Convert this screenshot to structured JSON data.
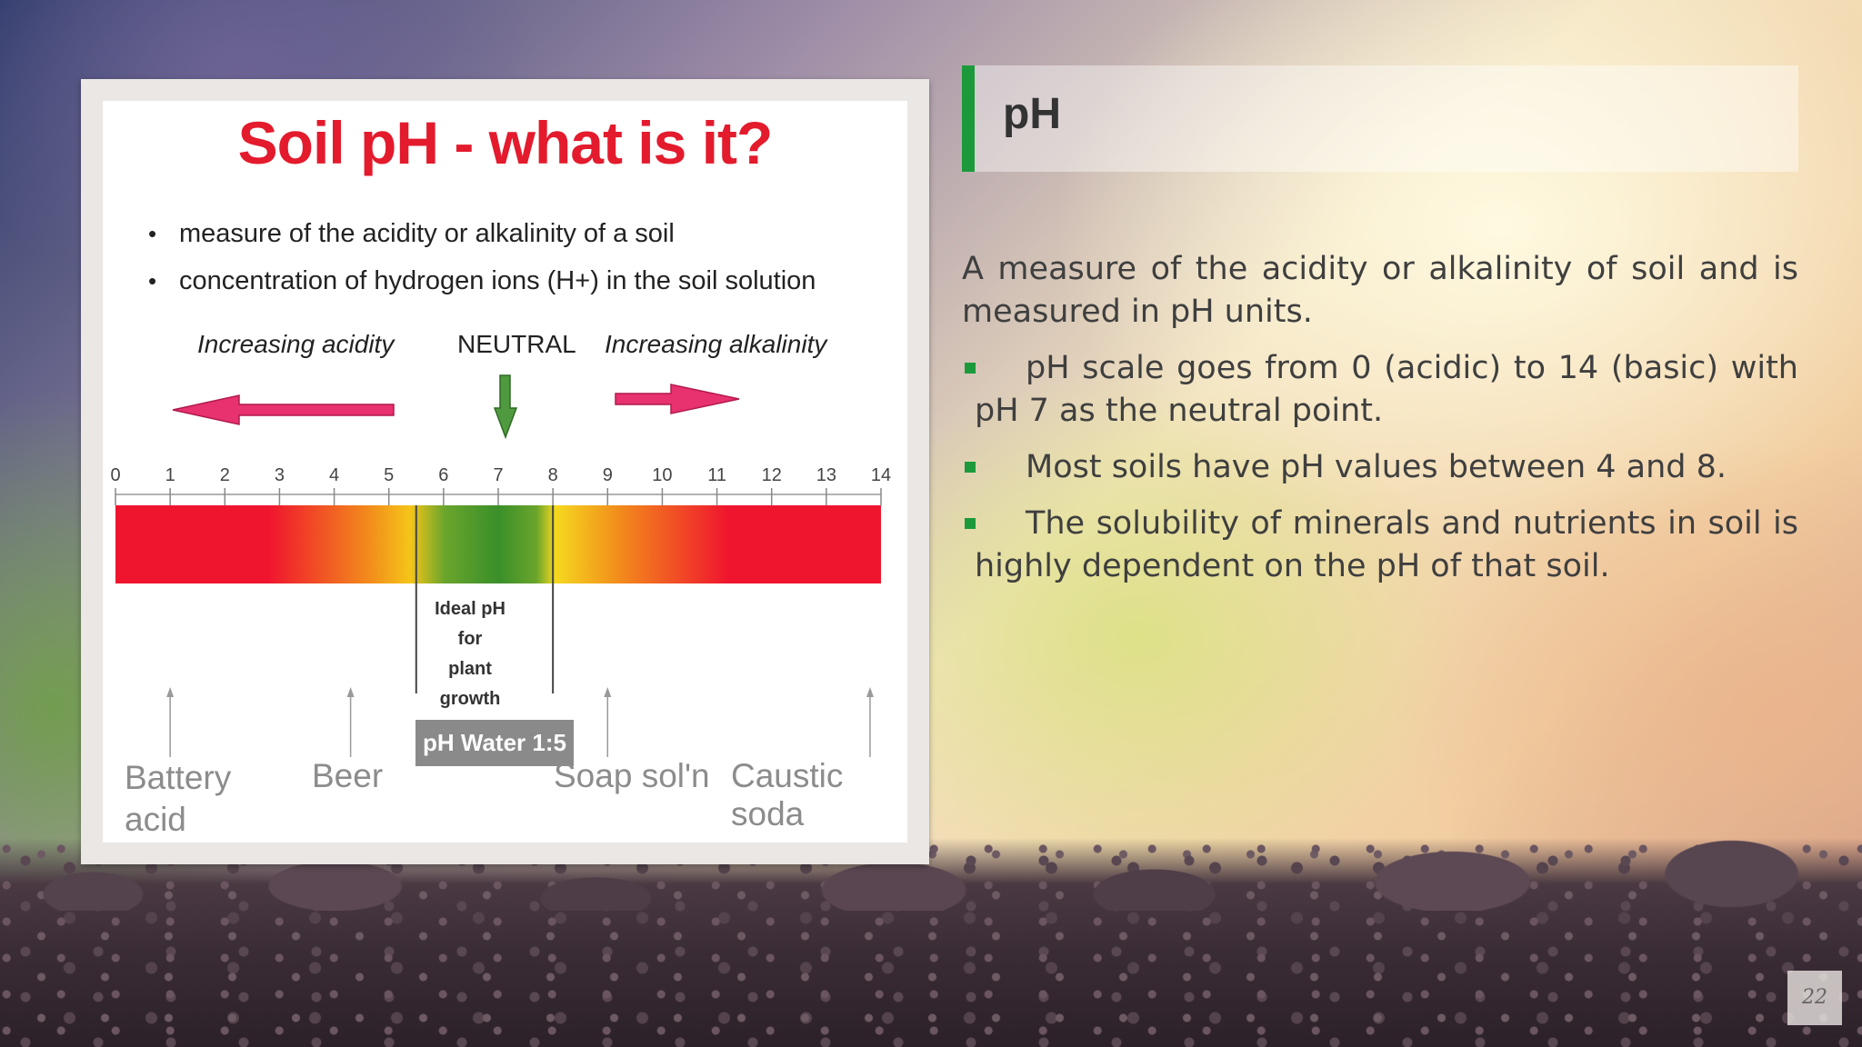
{
  "slide": {
    "title": "pH",
    "intro": "A measure of the acidity or alkalinity of soil and is measured in pH units.",
    "points": [
      "pH scale goes from 0 (acidic) to 14 (basic) with pH 7 as the neutral point.",
      "Most soils have pH values between 4 and 8.",
      "The solubility of minerals and nutrients in soil is highly dependent on the pH of that soil."
    ],
    "page_number": "22",
    "accent_color": "#1c9a3b"
  },
  "diagram": {
    "title": "Soil pH - what is it?",
    "bullets": [
      "measure of the acidity or alkalinity of a soil",
      "concentration of hydrogen ions (H+) in the soil solution"
    ],
    "increasing_acidity": "Increasing acidity",
    "neutral": "NEUTRAL",
    "increasing_alkalinity": "Increasing alkalinity",
    "scale_ticks": [
      "0",
      "1",
      "2",
      "3",
      "4",
      "5",
      "6",
      "7",
      "8",
      "9",
      "10",
      "11",
      "12",
      "13",
      "14"
    ],
    "ideal_label_line1": "Ideal pH for",
    "ideal_label_line2": "plant growth",
    "ideal_range": [
      5.5,
      8
    ],
    "water_badge": "pH Water 1:5",
    "examples": [
      {
        "label": "Battery acid",
        "ph": 1
      },
      {
        "label": "Beer",
        "ph": 4.3
      },
      {
        "label": "Soap sol'n",
        "ph": 9
      },
      {
        "label": "Caustic soda",
        "ph": 13.8
      }
    ],
    "colors": {
      "title": "#e31b2d",
      "arrow_pink": "#e8316f",
      "arrow_green": "#4f9a3e",
      "scale_red": "#f0152e",
      "scale_yellow": "#f5c518",
      "scale_green": "#3a8f2a"
    }
  }
}
